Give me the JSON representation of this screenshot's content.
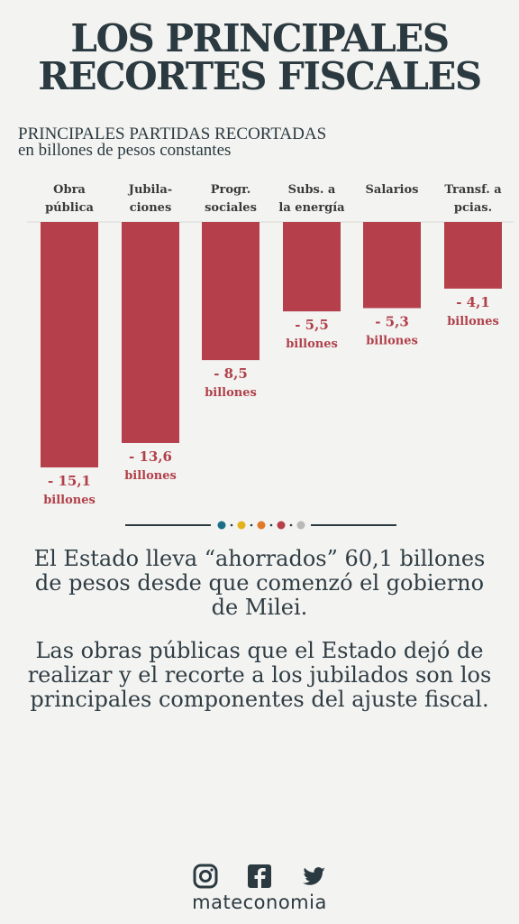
{
  "header": {
    "title_line1": "LOS PRINCIPALES",
    "title_line2": "RECORTES FISCALES",
    "subtitle_line1": "PRINCIPALES PARTIDAS RECORTADAS",
    "subtitle_line2": "en billones de pesos constantes"
  },
  "chart_data": {
    "type": "bar",
    "categories": [
      [
        "Obra",
        "pública"
      ],
      [
        "Jubila-",
        "ciones"
      ],
      [
        "Progr.",
        "sociales"
      ],
      [
        "Subs. a",
        "la energía"
      ],
      [
        "Salarios"
      ],
      [
        "Transf. a",
        "pcias."
      ]
    ],
    "values": [
      -15.1,
      -13.6,
      -8.5,
      -5.5,
      -5.3,
      -4.1
    ],
    "value_labels": [
      "- 15,1",
      "- 13,6",
      "- 8,5",
      "- 5,5",
      "- 5,3",
      "- 4,1"
    ],
    "unit_label": "billones",
    "ylim": [
      -15.1,
      0
    ],
    "bar_color": "#b5404b",
    "label_color": "#b0404a",
    "grid": false
  },
  "divider_dots": [
    "#1e6e88",
    "#e3b21c",
    "#e07a2a",
    "#b5404b",
    "#b9b9b9"
  ],
  "body": {
    "paragraph1": "El Estado lleva “ahorrados” 60,1 billones de pesos desde que comenzó el gobierno de Milei.",
    "paragraph2": "Las obras públicas que el Estado dejó de realizar y el recorte a los jubilados son los principales componentes del ajuste fiscal."
  },
  "footer": {
    "icons": [
      "instagram-icon",
      "facebook-icon",
      "twitter-icon"
    ],
    "brand": "mateconomia"
  }
}
